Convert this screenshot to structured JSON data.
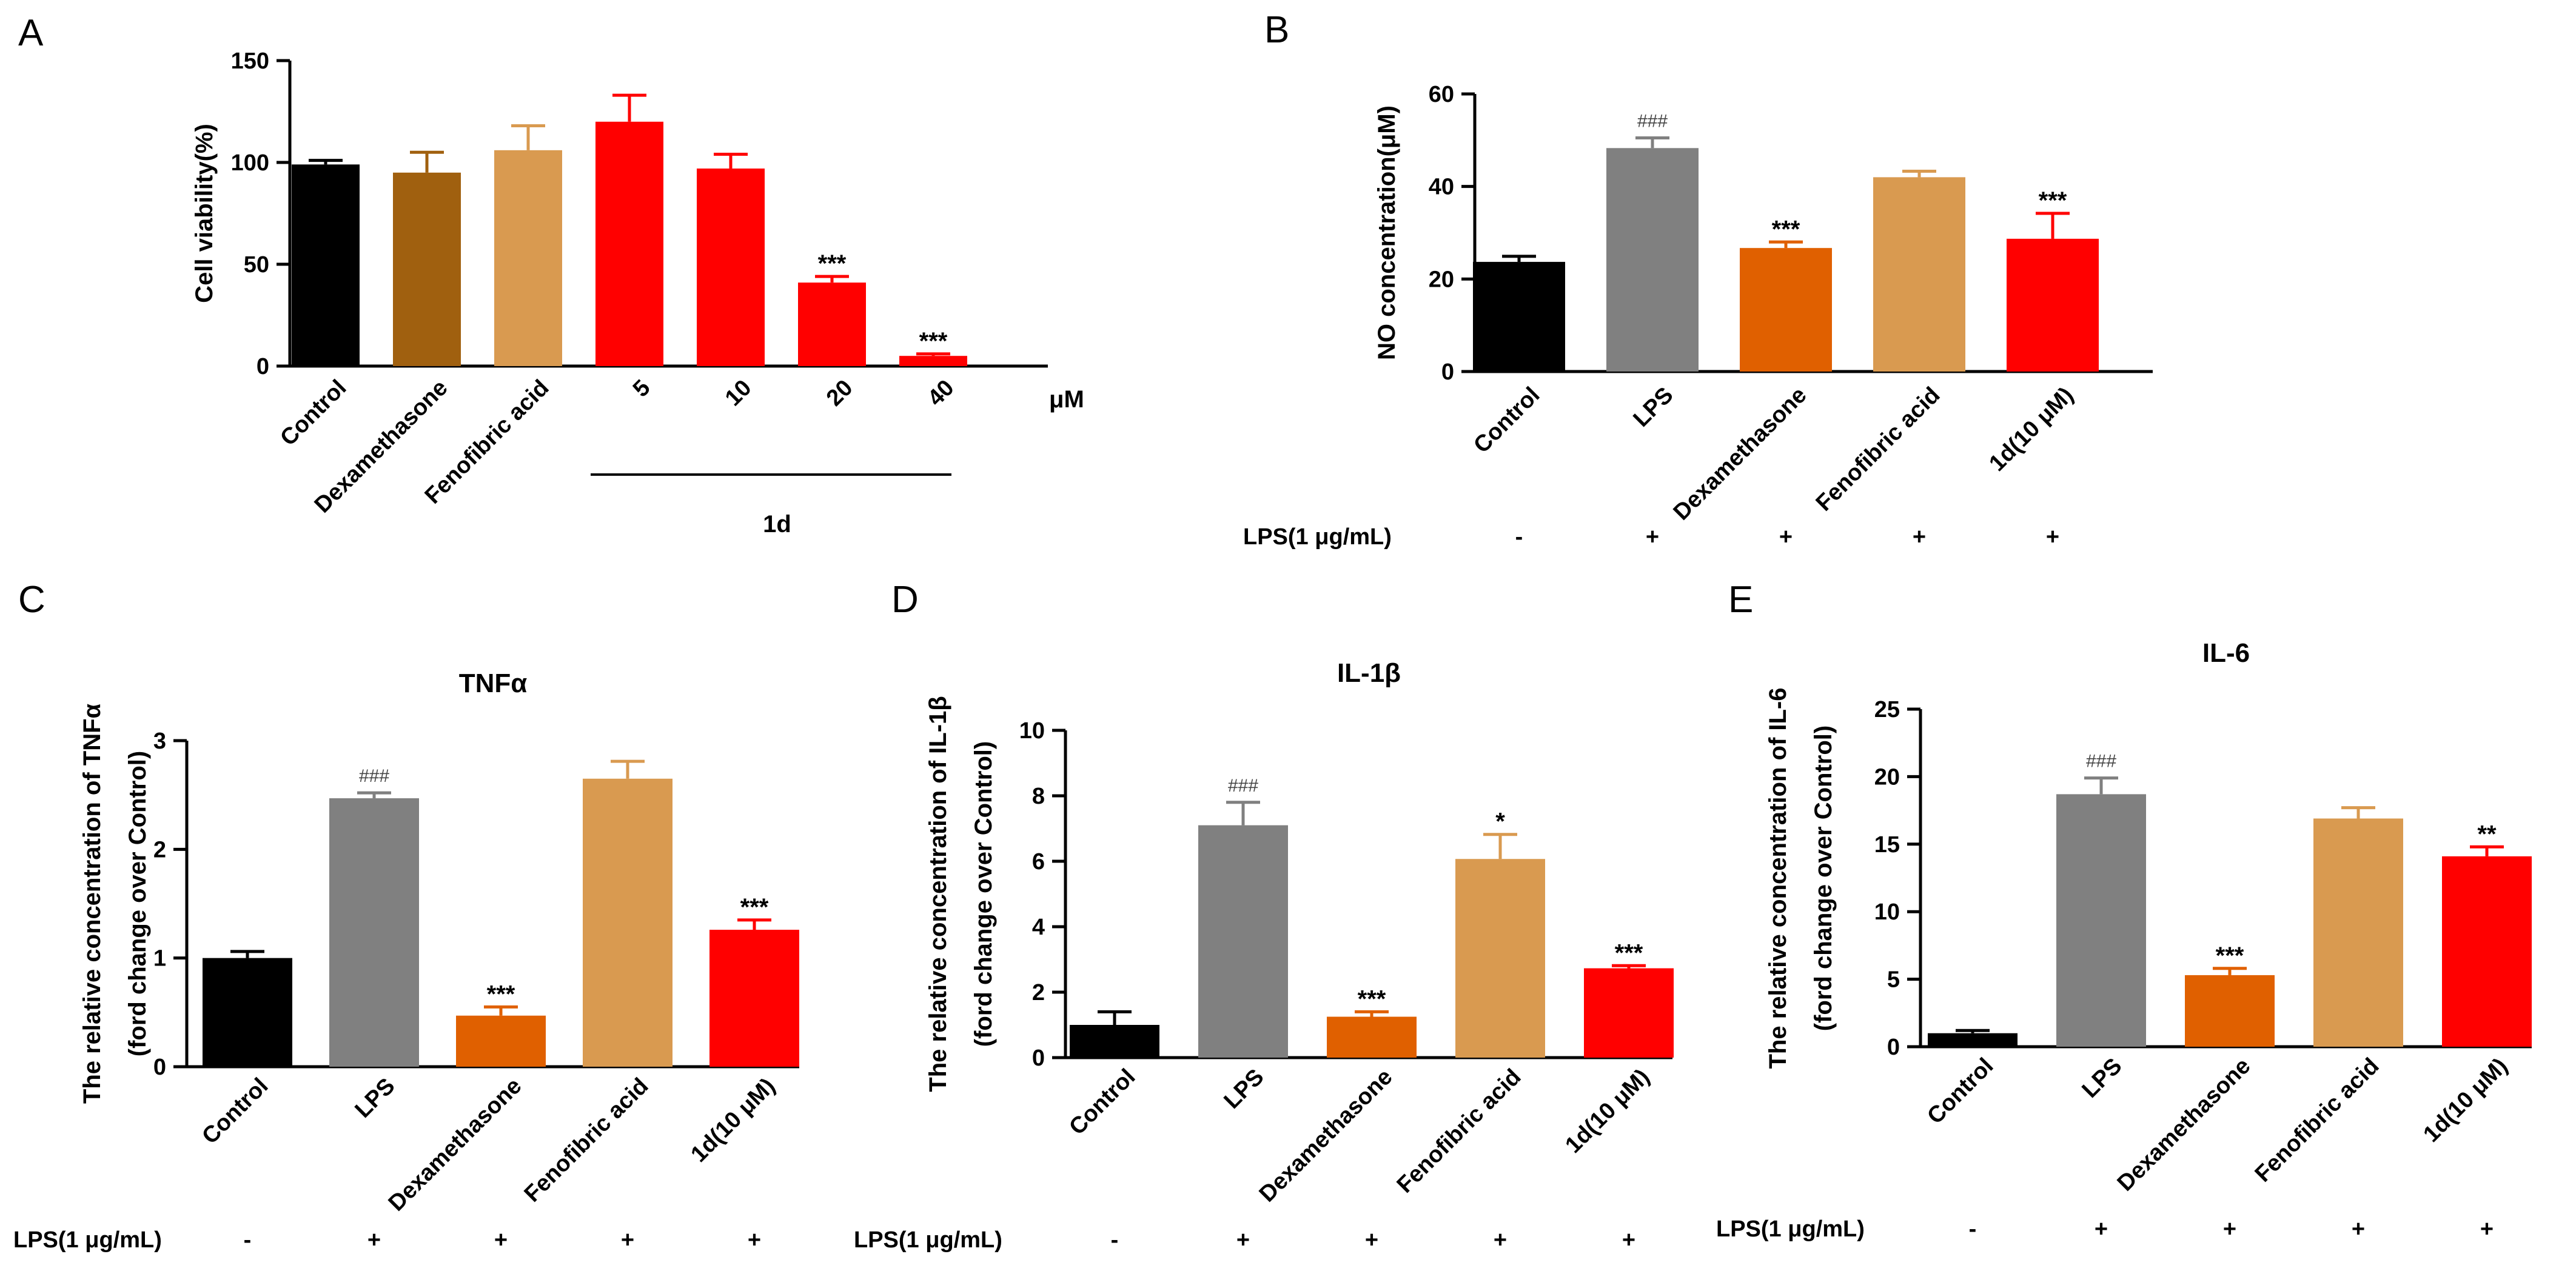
{
  "chart_data": [
    {
      "type": "bar",
      "panel": "A",
      "title": "",
      "ylabel": "Cell viability(%)",
      "ylim": [
        0,
        150
      ],
      "yticks": [
        0,
        50,
        100,
        150
      ],
      "unit_label": "μM",
      "group_label": "1d",
      "categories": [
        "Control",
        "Dexamethasone",
        "Fenofibric acid",
        "5",
        "10",
        "20",
        "40"
      ],
      "values": [
        99,
        95,
        106,
        120,
        97,
        41,
        5
      ],
      "errors": [
        2,
        10,
        12,
        13,
        7,
        3,
        1
      ],
      "colors": [
        "#000000",
        "#A0600F",
        "#D99A50",
        "#FF0000",
        "#FF0000",
        "#FF0000",
        "#FF0000"
      ],
      "significance": [
        "",
        "",
        "",
        "",
        "",
        "***",
        "***"
      ]
    },
    {
      "type": "bar",
      "panel": "B",
      "title": "",
      "ylabel": "NO concentration(μM)",
      "ylim": [
        0,
        60
      ],
      "yticks": [
        0,
        20,
        40,
        60
      ],
      "categories": [
        "Control",
        "LPS",
        "Dexamethasone",
        "Fenofibric acid",
        "1d(10 μM)"
      ],
      "values": [
        23.7,
        48.3,
        26.7,
        42,
        28.7
      ],
      "errors": [
        1.2,
        2.2,
        1.3,
        1.3,
        5.5
      ],
      "colors": [
        "#000000",
        "#808080",
        "#E06000",
        "#D99A50",
        "#FF0000"
      ],
      "significance": [
        "",
        "###",
        "***",
        "",
        "***"
      ],
      "lps_label": "LPS(1 μg/mL)",
      "lps": [
        "-",
        "+",
        "+",
        "+",
        "+"
      ]
    },
    {
      "type": "bar",
      "panel": "C",
      "title": "TNFα",
      "ylabel": [
        "The relative concentration of TNFα",
        "(ford change over Control)"
      ],
      "ylim": [
        0,
        3
      ],
      "yticks": [
        0,
        1,
        2,
        3
      ],
      "categories": [
        "Control",
        "LPS",
        "Dexamethasone",
        "Fenofibric acid",
        "1d(10 μM)"
      ],
      "values": [
        1.0,
        2.47,
        0.47,
        2.65,
        1.26
      ],
      "errors": [
        0.06,
        0.05,
        0.08,
        0.16,
        0.09
      ],
      "colors": [
        "#000000",
        "#808080",
        "#E06000",
        "#D99A50",
        "#FF0000"
      ],
      "significance": [
        "",
        "###",
        "***",
        "",
        "***"
      ],
      "lps_label": "LPS(1 μg/mL)",
      "lps": [
        "-",
        "+",
        "+",
        "+",
        "+"
      ]
    },
    {
      "type": "bar",
      "panel": "D",
      "title": "IL-1β",
      "ylabel": [
        "The relative concentration of IL-1β",
        "(ford change over Control)"
      ],
      "ylim": [
        0,
        10
      ],
      "yticks": [
        0,
        2,
        4,
        6,
        8,
        10
      ],
      "categories": [
        "Control",
        "LPS",
        "Dexamethasone",
        "Fenofibric acid",
        "1d(10 μM)"
      ],
      "values": [
        1.0,
        7.1,
        1.25,
        6.07,
        2.73
      ],
      "errors": [
        0.4,
        0.7,
        0.15,
        0.75,
        0.08
      ],
      "colors": [
        "#000000",
        "#808080",
        "#E06000",
        "#D99A50",
        "#FF0000"
      ],
      "significance": [
        "",
        "###",
        "***",
        "*",
        "***"
      ],
      "lps_label": "LPS(1 μg/mL)",
      "lps": [
        "-",
        "+",
        "+",
        "+",
        "+"
      ]
    },
    {
      "type": "bar",
      "panel": "E",
      "title": "IL-6",
      "ylabel": [
        "The relative concentration of IL-6",
        "(ford change over Control)"
      ],
      "ylim": [
        0,
        25
      ],
      "yticks": [
        0,
        5,
        10,
        15,
        20,
        25
      ],
      "categories": [
        "Control",
        "LPS",
        "Dexamethasone",
        "Fenofibric acid",
        "1d(10 μM)"
      ],
      "values": [
        1.0,
        18.7,
        5.3,
        16.9,
        14.1
      ],
      "errors": [
        0.2,
        1.2,
        0.5,
        0.8,
        0.7
      ],
      "colors": [
        "#000000",
        "#808080",
        "#E06000",
        "#D99A50",
        "#FF0000"
      ],
      "significance": [
        "",
        "###",
        "***",
        "",
        "**"
      ],
      "lps_label": "LPS(1 μg/mL)",
      "lps": [
        "-",
        "+",
        "+",
        "+",
        "+"
      ]
    }
  ]
}
